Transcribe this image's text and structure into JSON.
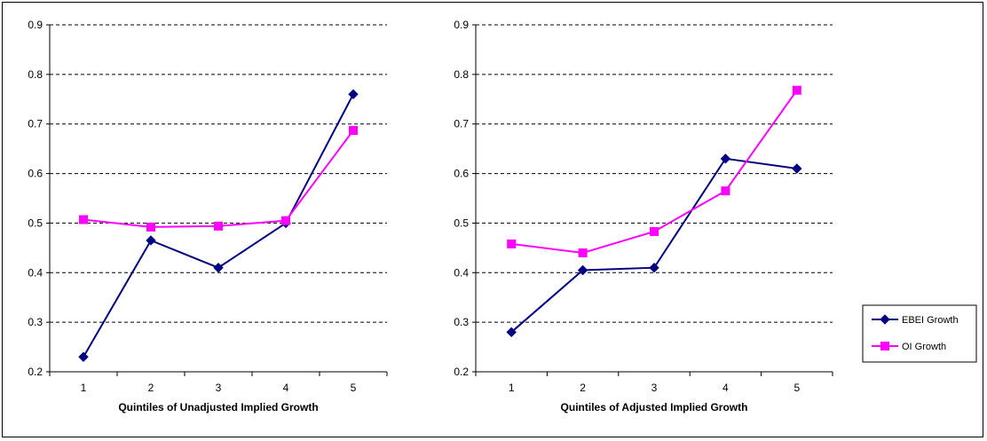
{
  "chart_data": [
    {
      "type": "line",
      "xlabel": "Quintiles of Unadjusted Implied Growth",
      "ylabel": "",
      "categories": [
        "1",
        "2",
        "3",
        "4",
        "5"
      ],
      "ylim": [
        0.2,
        0.9
      ],
      "yticks": [
        "0.2",
        "0.3",
        "0.4",
        "0.5",
        "0.6",
        "0.7",
        "0.8",
        "0.9"
      ],
      "grid": "horizontal dashed",
      "series": [
        {
          "name": "EBEI Growth",
          "color": "#000080",
          "marker": "diamond",
          "values": [
            0.23,
            0.465,
            0.41,
            0.5,
            0.76
          ]
        },
        {
          "name": "OI Growth",
          "color": "#FF00FF",
          "marker": "square",
          "values": [
            0.507,
            0.492,
            0.494,
            0.505,
            0.687
          ]
        }
      ]
    },
    {
      "type": "line",
      "xlabel": "Quintiles of Adjusted Implied Growth",
      "ylabel": "",
      "categories": [
        "1",
        "2",
        "3",
        "4",
        "5"
      ],
      "ylim": [
        0.2,
        0.9
      ],
      "yticks": [
        "0.2",
        "0.3",
        "0.4",
        "0.5",
        "0.6",
        "0.7",
        "0.8",
        "0.9"
      ],
      "grid": "horizontal dashed",
      "series": [
        {
          "name": "EBEI Growth",
          "color": "#000080",
          "marker": "diamond",
          "values": [
            0.28,
            0.405,
            0.41,
            0.63,
            0.61
          ]
        },
        {
          "name": "OI Growth",
          "color": "#FF00FF",
          "marker": "square",
          "values": [
            0.458,
            0.44,
            0.483,
            0.565,
            0.768
          ]
        }
      ]
    }
  ],
  "legend": {
    "placement": "right",
    "items": [
      {
        "label": "EBEI Growth",
        "color": "#000080",
        "marker": "diamond"
      },
      {
        "label": "OI Growth",
        "color": "#FF00FF",
        "marker": "square"
      }
    ]
  }
}
